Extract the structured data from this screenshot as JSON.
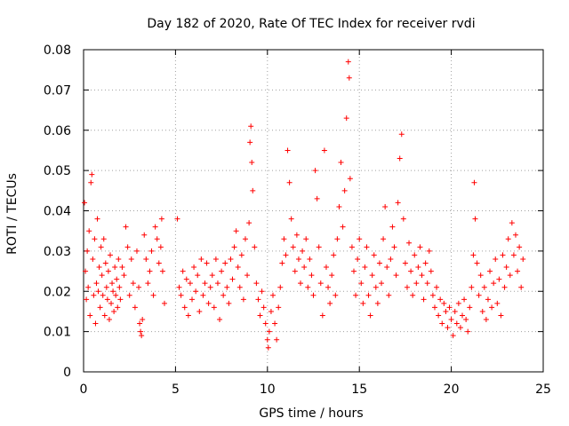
{
  "chart_data": {
    "type": "scatter",
    "title": "Day 182 of 2020, Rate Of TEC Index for receiver rvdi",
    "xlabel": "GPS time / hours",
    "ylabel": "ROTI / TECUs",
    "xlim": [
      0,
      25
    ],
    "ylim": [
      0,
      0.08
    ],
    "xticks": [
      0,
      5,
      10,
      15,
      20,
      25
    ],
    "xtick_labels": [
      "0",
      "5",
      "10",
      "15",
      "20",
      "25"
    ],
    "yticks": [
      0,
      0.01,
      0.02,
      0.03,
      0.04,
      0.05,
      0.06,
      0.07,
      0.08
    ],
    "ytick_labels": [
      "0",
      "0.01",
      "0.02",
      "0.03",
      "0.04",
      "0.05",
      "0.06",
      "0.07",
      "0.08"
    ],
    "grid": true,
    "marker": "+",
    "color": "#ff0000",
    "series": [
      {
        "name": "ROTI",
        "points": [
          [
            0.05,
            0.042
          ],
          [
            0.1,
            0.025
          ],
          [
            0.15,
            0.018
          ],
          [
            0.2,
            0.03
          ],
          [
            0.25,
            0.021
          ],
          [
            0.3,
            0.035
          ],
          [
            0.35,
            0.014
          ],
          [
            0.4,
            0.047
          ],
          [
            0.45,
            0.049
          ],
          [
            0.5,
            0.028
          ],
          [
            0.55,
            0.019
          ],
          [
            0.6,
            0.033
          ],
          [
            0.65,
            0.012
          ],
          [
            0.7,
            0.022
          ],
          [
            0.75,
            0.038
          ],
          [
            0.8,
            0.02
          ],
          [
            0.85,
            0.026
          ],
          [
            0.9,
            0.016
          ],
          [
            0.95,
            0.031
          ],
          [
            1.0,
            0.024
          ],
          [
            1.05,
            0.019
          ],
          [
            1.1,
            0.033
          ],
          [
            1.15,
            0.014
          ],
          [
            1.2,
            0.027
          ],
          [
            1.25,
            0.021
          ],
          [
            1.3,
            0.018
          ],
          [
            1.35,
            0.025
          ],
          [
            1.4,
            0.013
          ],
          [
            1.45,
            0.029
          ],
          [
            1.5,
            0.017
          ],
          [
            1.55,
            0.022
          ],
          [
            1.6,
            0.02
          ],
          [
            1.65,
            0.015
          ],
          [
            1.7,
            0.026
          ],
          [
            1.75,
            0.019
          ],
          [
            1.8,
            0.023
          ],
          [
            1.85,
            0.016
          ],
          [
            1.9,
            0.028
          ],
          [
            1.95,
            0.021
          ],
          [
            2.0,
            0.018
          ],
          [
            2.1,
            0.026
          ],
          [
            2.2,
            0.024
          ],
          [
            2.3,
            0.036
          ],
          [
            2.4,
            0.031
          ],
          [
            2.5,
            0.019
          ],
          [
            2.6,
            0.028
          ],
          [
            2.7,
            0.022
          ],
          [
            2.8,
            0.016
          ],
          [
            2.9,
            0.03
          ],
          [
            3.0,
            0.021
          ],
          [
            3.05,
            0.012
          ],
          [
            3.1,
            0.01
          ],
          [
            3.15,
            0.009
          ],
          [
            3.2,
            0.013
          ],
          [
            3.3,
            0.034
          ],
          [
            3.4,
            0.028
          ],
          [
            3.5,
            0.022
          ],
          [
            3.6,
            0.025
          ],
          [
            3.7,
            0.03
          ],
          [
            3.8,
            0.019
          ],
          [
            3.9,
            0.036
          ],
          [
            4.0,
            0.033
          ],
          [
            4.1,
            0.027
          ],
          [
            4.2,
            0.031
          ],
          [
            4.25,
            0.038
          ],
          [
            4.3,
            0.025
          ],
          [
            4.4,
            0.017
          ],
          [
            5.1,
            0.038
          ],
          [
            5.2,
            0.021
          ],
          [
            5.3,
            0.019
          ],
          [
            5.4,
            0.025
          ],
          [
            5.5,
            0.016
          ],
          [
            5.6,
            0.023
          ],
          [
            5.7,
            0.014
          ],
          [
            5.8,
            0.022
          ],
          [
            5.9,
            0.018
          ],
          [
            6.0,
            0.026
          ],
          [
            6.1,
            0.02
          ],
          [
            6.2,
            0.024
          ],
          [
            6.3,
            0.015
          ],
          [
            6.4,
            0.028
          ],
          [
            6.5,
            0.019
          ],
          [
            6.6,
            0.022
          ],
          [
            6.7,
            0.027
          ],
          [
            6.8,
            0.017
          ],
          [
            6.9,
            0.021
          ],
          [
            7.0,
            0.024
          ],
          [
            7.1,
            0.016
          ],
          [
            7.2,
            0.028
          ],
          [
            7.3,
            0.022
          ],
          [
            7.4,
            0.013
          ],
          [
            7.5,
            0.025
          ],
          [
            7.6,
            0.019
          ],
          [
            7.7,
            0.027
          ],
          [
            7.8,
            0.021
          ],
          [
            7.9,
            0.017
          ],
          [
            8.0,
            0.028
          ],
          [
            8.1,
            0.023
          ],
          [
            8.2,
            0.031
          ],
          [
            8.3,
            0.035
          ],
          [
            8.4,
            0.026
          ],
          [
            8.5,
            0.021
          ],
          [
            8.6,
            0.029
          ],
          [
            8.7,
            0.018
          ],
          [
            8.8,
            0.033
          ],
          [
            8.9,
            0.024
          ],
          [
            9.0,
            0.037
          ],
          [
            9.05,
            0.057
          ],
          [
            9.1,
            0.061
          ],
          [
            9.15,
            0.052
          ],
          [
            9.2,
            0.045
          ],
          [
            9.3,
            0.031
          ],
          [
            9.4,
            0.022
          ],
          [
            9.5,
            0.018
          ],
          [
            9.6,
            0.014
          ],
          [
            9.7,
            0.02
          ],
          [
            9.8,
            0.016
          ],
          [
            9.9,
            0.012
          ],
          [
            10.0,
            0.008
          ],
          [
            10.05,
            0.006
          ],
          [
            10.1,
            0.01
          ],
          [
            10.2,
            0.015
          ],
          [
            10.3,
            0.019
          ],
          [
            10.4,
            0.012
          ],
          [
            10.5,
            0.008
          ],
          [
            10.6,
            0.016
          ],
          [
            10.7,
            0.021
          ],
          [
            10.8,
            0.027
          ],
          [
            10.9,
            0.033
          ],
          [
            11.0,
            0.029
          ],
          [
            11.1,
            0.055
          ],
          [
            11.2,
            0.047
          ],
          [
            11.3,
            0.038
          ],
          [
            11.4,
            0.031
          ],
          [
            11.5,
            0.025
          ],
          [
            11.6,
            0.034
          ],
          [
            11.7,
            0.028
          ],
          [
            11.8,
            0.022
          ],
          [
            11.9,
            0.03
          ],
          [
            12.0,
            0.026
          ],
          [
            12.1,
            0.033
          ],
          [
            12.2,
            0.021
          ],
          [
            12.3,
            0.028
          ],
          [
            12.4,
            0.024
          ],
          [
            12.5,
            0.019
          ],
          [
            12.6,
            0.05
          ],
          [
            12.7,
            0.043
          ],
          [
            12.8,
            0.031
          ],
          [
            12.9,
            0.022
          ],
          [
            13.0,
            0.014
          ],
          [
            13.1,
            0.055
          ],
          [
            13.2,
            0.026
          ],
          [
            13.3,
            0.021
          ],
          [
            13.4,
            0.017
          ],
          [
            13.5,
            0.024
          ],
          [
            13.6,
            0.029
          ],
          [
            13.7,
            0.019
          ],
          [
            13.8,
            0.033
          ],
          [
            13.9,
            0.041
          ],
          [
            14.0,
            0.052
          ],
          [
            14.1,
            0.036
          ],
          [
            14.2,
            0.045
          ],
          [
            14.3,
            0.063
          ],
          [
            14.4,
            0.077
          ],
          [
            14.45,
            0.073
          ],
          [
            14.5,
            0.048
          ],
          [
            14.6,
            0.031
          ],
          [
            14.7,
            0.025
          ],
          [
            14.8,
            0.019
          ],
          [
            14.9,
            0.028
          ],
          [
            15.0,
            0.033
          ],
          [
            15.1,
            0.022
          ],
          [
            15.2,
            0.017
          ],
          [
            15.3,
            0.026
          ],
          [
            15.4,
            0.031
          ],
          [
            15.5,
            0.019
          ],
          [
            15.6,
            0.014
          ],
          [
            15.7,
            0.024
          ],
          [
            15.8,
            0.029
          ],
          [
            15.9,
            0.021
          ],
          [
            16.0,
            0.017
          ],
          [
            16.1,
            0.027
          ],
          [
            16.2,
            0.022
          ],
          [
            16.3,
            0.033
          ],
          [
            16.4,
            0.041
          ],
          [
            16.5,
            0.026
          ],
          [
            16.6,
            0.019
          ],
          [
            16.7,
            0.028
          ],
          [
            16.8,
            0.036
          ],
          [
            16.9,
            0.031
          ],
          [
            17.0,
            0.024
          ],
          [
            17.1,
            0.042
          ],
          [
            17.2,
            0.053
          ],
          [
            17.3,
            0.059
          ],
          [
            17.4,
            0.038
          ],
          [
            17.5,
            0.027
          ],
          [
            17.6,
            0.021
          ],
          [
            17.7,
            0.032
          ],
          [
            17.8,
            0.025
          ],
          [
            17.9,
            0.019
          ],
          [
            18.0,
            0.029
          ],
          [
            18.1,
            0.022
          ],
          [
            18.2,
            0.026
          ],
          [
            18.3,
            0.031
          ],
          [
            18.4,
            0.024
          ],
          [
            18.5,
            0.018
          ],
          [
            18.6,
            0.027
          ],
          [
            18.7,
            0.022
          ],
          [
            18.8,
            0.03
          ],
          [
            18.9,
            0.025
          ],
          [
            19.0,
            0.019
          ],
          [
            19.1,
            0.016
          ],
          [
            19.2,
            0.021
          ],
          [
            19.3,
            0.014
          ],
          [
            19.4,
            0.018
          ],
          [
            19.5,
            0.012
          ],
          [
            19.6,
            0.017
          ],
          [
            19.7,
            0.015
          ],
          [
            19.8,
            0.011
          ],
          [
            19.9,
            0.016
          ],
          [
            20.0,
            0.013
          ],
          [
            20.1,
            0.009
          ],
          [
            20.2,
            0.015
          ],
          [
            20.3,
            0.012
          ],
          [
            20.4,
            0.017
          ],
          [
            20.5,
            0.011
          ],
          [
            20.6,
            0.014
          ],
          [
            20.7,
            0.018
          ],
          [
            20.8,
            0.013
          ],
          [
            20.9,
            0.01
          ],
          [
            21.0,
            0.016
          ],
          [
            21.1,
            0.021
          ],
          [
            21.2,
            0.029
          ],
          [
            21.25,
            0.047
          ],
          [
            21.3,
            0.038
          ],
          [
            21.4,
            0.027
          ],
          [
            21.5,
            0.019
          ],
          [
            21.6,
            0.024
          ],
          [
            21.7,
            0.015
          ],
          [
            21.8,
            0.021
          ],
          [
            21.9,
            0.013
          ],
          [
            22.0,
            0.018
          ],
          [
            22.1,
            0.025
          ],
          [
            22.2,
            0.016
          ],
          [
            22.3,
            0.022
          ],
          [
            22.4,
            0.028
          ],
          [
            22.5,
            0.017
          ],
          [
            22.6,
            0.023
          ],
          [
            22.7,
            0.014
          ],
          [
            22.8,
            0.029
          ],
          [
            22.9,
            0.021
          ],
          [
            23.0,
            0.026
          ],
          [
            23.1,
            0.033
          ],
          [
            23.2,
            0.024
          ],
          [
            23.3,
            0.037
          ],
          [
            23.4,
            0.029
          ],
          [
            23.5,
            0.034
          ],
          [
            23.6,
            0.025
          ],
          [
            23.7,
            0.031
          ],
          [
            23.8,
            0.021
          ],
          [
            23.9,
            0.028
          ]
        ]
      }
    ]
  }
}
